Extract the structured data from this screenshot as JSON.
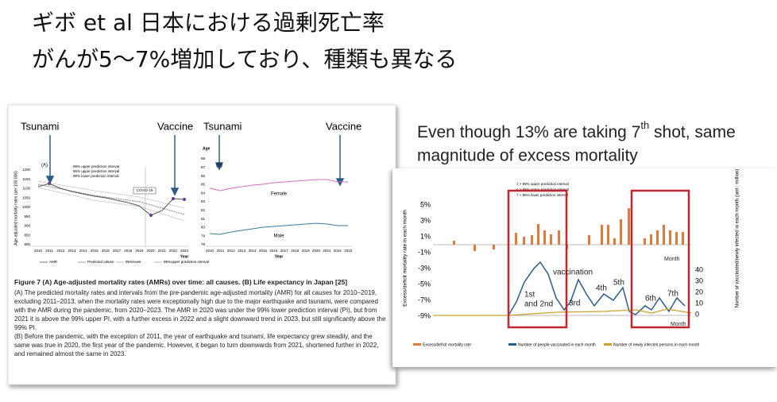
{
  "slide": {
    "title_line1": "ギボ et al 日本における過剰死亡率",
    "title_line2": "がんが5〜7%増加しており、種類も異なる"
  },
  "left_figure": {
    "tsunami_a": "Tsunami",
    "vaccine_a": "Vaccine",
    "tsunami_b": "Tsunami",
    "vaccine_b": "Vaccine",
    "panel_a": "(A)",
    "panel_b": "(B)",
    "a_legend": [
      "99% upper prediction interval",
      "95% upper prediction interval",
      "99% lower prediction interval"
    ],
    "covid": "COVID-19",
    "a_ylabel": "Age-adjusted mortality rates (per 100,000)",
    "a_yticks": [
      "1200",
      "1150",
      "1100",
      "1050",
      "1000",
      "950",
      "900",
      "850",
      "800"
    ],
    "xticks": [
      "2010",
      "2011",
      "2012",
      "2013",
      "2014",
      "2015",
      "2016",
      "2017",
      "2018",
      "2019",
      "2020",
      "2021",
      "2022",
      "2023"
    ],
    "a_xlabel": "Year",
    "a_bottom_legend": [
      "AMR",
      "Predicted values",
      "95%lower",
      "95%upper prediction interval"
    ],
    "b_ylabel": "Age",
    "b_yticks": [
      "88",
      "87",
      "86",
      "85",
      "84",
      "83",
      "82",
      "81",
      "80",
      "79",
      "78"
    ],
    "female": "Female",
    "male": "Male",
    "b_xlabel": "Year",
    "caption_title": "Figure 7 (A) Age-adjusted mortality rates (AMRs) over time: all causes. (B) Life expectancy in Japan [25]",
    "caption_a": "(A) The predicted mortality rates and intervals from the pre-pandemic age-adjusted mortality (AMR) for all causes for 2010–2019, excluding 2011–2013, when the mortality rates were exceptionally high due to the major earthquake and tsunami, were compared with the AMR during the pandemic, from 2020–2023. The AMR in 2020 was under the 99% lower prediction interval (PI), but from 2021 it is above the 99% upper PI, with a further excess in 2022 and a slight downward trend in 2023, but still significantly above the 99% PI.",
    "caption_b": "(B) Before the pandemic, with the exception of 2011, the year of earthquake and tsunami, life expectancy grew steadily, and the same was true in 2020, the first year of the pandemic. However, it began to turn downwards from 2021, shortened further in 2022, and remained almost the same in 2023."
  },
  "right_figure": {
    "heading_before": "Even though 13% are taking 7",
    "heading_sup": "th",
    "heading_after": " shot, same",
    "heading_line2": "magnitude of excess mortality",
    "notes": [
      "‡ > 99% upper prediction interval",
      "a > 95% upper prediction interval",
      "† < 95% lower prediction interval"
    ],
    "yticks": [
      "5%",
      "3%",
      "1%",
      "-1%",
      "-3%",
      "-5%",
      "-7%",
      "-9%"
    ],
    "ylabel": "Excess/deficit mortality rate in each month",
    "y2ticks": [
      "40",
      "30",
      "20",
      "10",
      "0"
    ],
    "y2label": "Number of vaccinated/newly infected in each month (unit : million)",
    "vaccination": "vaccination",
    "dose_1": "1st",
    "dose_2": "and 2nd",
    "dose_3": "3rd",
    "dose_4": "4th",
    "dose_5": "5th",
    "dose_6": "6th",
    "dose_7": "7th",
    "month_top": "Month",
    "month_bottom": "Month",
    "legend": [
      "Excess/deficit mortality rate",
      "Number of people vaccinated in each month",
      "Number of newly infected persons in each month"
    ]
  }
}
